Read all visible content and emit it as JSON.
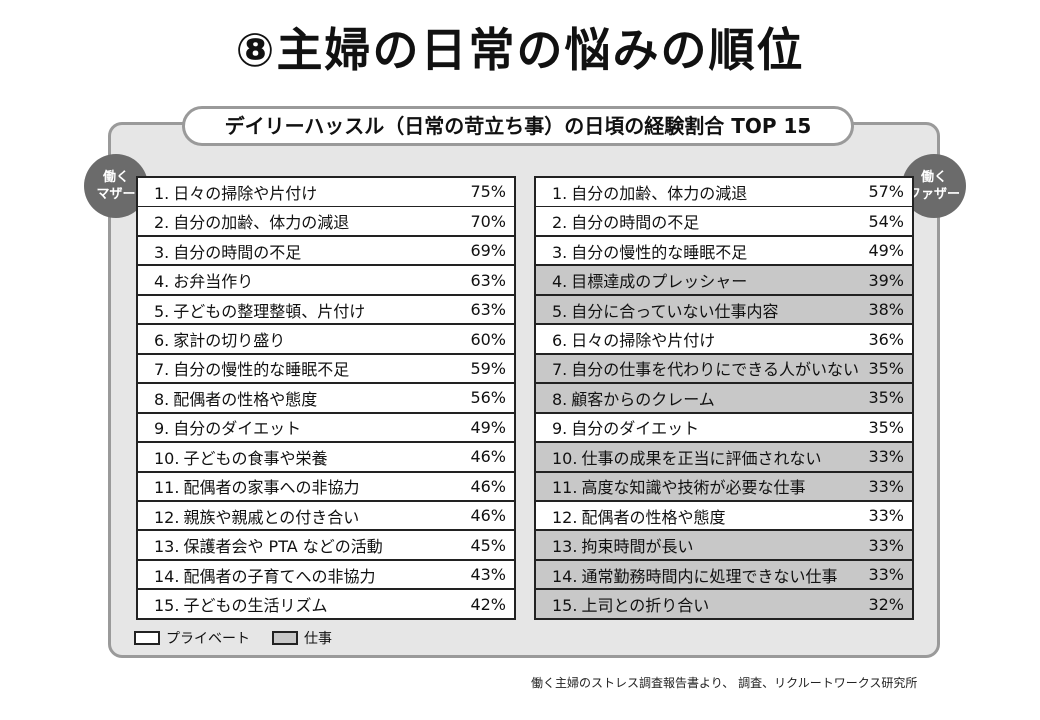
{
  "title": "⑧主婦の日常の悩みの順位",
  "subtitle": "デイリーハッスル（日常の苛立ち事）の日頃の経験割合 TOP 15",
  "badge_left": {
    "line1": "働く",
    "line2": "マザー"
  },
  "badge_right": {
    "line1": "働く",
    "line2": "ファザー"
  },
  "colors": {
    "work_row": "#c8c8c8",
    "private_row": "#ffffff",
    "panel": "#e6e6e6",
    "border": "#9a9a9a",
    "badge": "#6b6b6b"
  },
  "mothers": [
    {
      "rank": "1.",
      "label": "日々の掃除や片付け",
      "pct": "75%",
      "category": "private"
    },
    {
      "rank": "2.",
      "label": "自分の加齢、体力の減退",
      "pct": "70%",
      "category": "private"
    },
    {
      "rank": "3.",
      "label": "自分の時間の不足",
      "pct": "69%",
      "category": "private"
    },
    {
      "rank": "4.",
      "label": "お弁当作り",
      "pct": "63%",
      "category": "private"
    },
    {
      "rank": "5.",
      "label": "子どもの整理整頓、片付け",
      "pct": "63%",
      "category": "private"
    },
    {
      "rank": "6.",
      "label": "家計の切り盛り",
      "pct": "60%",
      "category": "private"
    },
    {
      "rank": "7.",
      "label": "自分の慢性的な睡眠不足",
      "pct": "59%",
      "category": "private"
    },
    {
      "rank": "8.",
      "label": "配偶者の性格や態度",
      "pct": "56%",
      "category": "private"
    },
    {
      "rank": "9.",
      "label": "自分のダイエット",
      "pct": "49%",
      "category": "private"
    },
    {
      "rank": "10.",
      "label": "子どもの食事や栄養",
      "pct": "46%",
      "category": "private"
    },
    {
      "rank": "11.",
      "label": "配偶者の家事への非協力",
      "pct": "46%",
      "category": "private"
    },
    {
      "rank": "12.",
      "label": "親族や親戚との付き合い",
      "pct": "46%",
      "category": "private"
    },
    {
      "rank": "13.",
      "label": "保護者会や PTA などの活動",
      "pct": "45%",
      "category": "private"
    },
    {
      "rank": "14.",
      "label": "配偶者の子育てへの非協力",
      "pct": "43%",
      "category": "private"
    },
    {
      "rank": "15.",
      "label": "子どもの生活リズム",
      "pct": "42%",
      "category": "private"
    }
  ],
  "fathers": [
    {
      "rank": "1.",
      "label": "自分の加齢、体力の減退",
      "pct": "57%",
      "category": "private"
    },
    {
      "rank": "2.",
      "label": "自分の時間の不足",
      "pct": "54%",
      "category": "private"
    },
    {
      "rank": "3.",
      "label": "自分の慢性的な睡眠不足",
      "pct": "49%",
      "category": "private"
    },
    {
      "rank": "4.",
      "label": "目標達成のプレッシャー",
      "pct": "39%",
      "category": "work"
    },
    {
      "rank": "5.",
      "label": "自分に合っていない仕事内容",
      "pct": "38%",
      "category": "work"
    },
    {
      "rank": "6.",
      "label": "日々の掃除や片付け",
      "pct": "36%",
      "category": "private"
    },
    {
      "rank": "7.",
      "label": "自分の仕事を代わりにできる人がいない",
      "pct": "35%",
      "category": "work"
    },
    {
      "rank": "8.",
      "label": "顧客からのクレーム",
      "pct": "35%",
      "category": "work"
    },
    {
      "rank": "9.",
      "label": "自分のダイエット",
      "pct": "35%",
      "category": "private"
    },
    {
      "rank": "10.",
      "label": "仕事の成果を正当に評価されない",
      "pct": "33%",
      "category": "work"
    },
    {
      "rank": "11.",
      "label": "高度な知識や技術が必要な仕事",
      "pct": "33%",
      "category": "work"
    },
    {
      "rank": "12.",
      "label": "配偶者の性格や態度",
      "pct": "33%",
      "category": "private"
    },
    {
      "rank": "13.",
      "label": "拘束時間が長い",
      "pct": "33%",
      "category": "work"
    },
    {
      "rank": "14.",
      "label": "通常勤務時間内に処理できない仕事",
      "pct": "33%",
      "category": "work"
    },
    {
      "rank": "15.",
      "label": "上司との折り合い",
      "pct": "32%",
      "category": "work"
    }
  ],
  "legend": {
    "private": "プライベート",
    "work": "仕事"
  },
  "source": "働く主婦のストレス調査報告書より、 調査、リクルートワークス研究所"
}
